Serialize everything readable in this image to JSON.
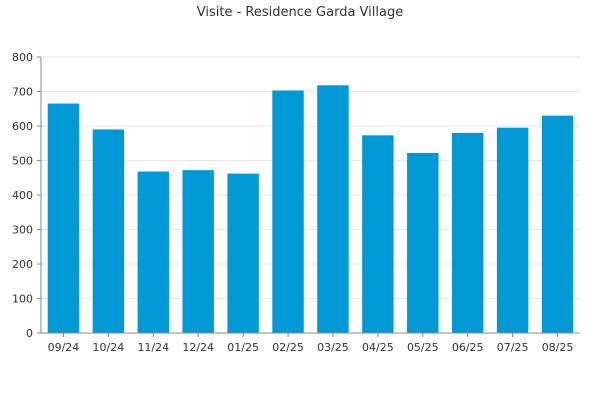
{
  "chart_data": {
    "type": "bar",
    "title": "Visite - Residence Garda Village",
    "xlabel": "",
    "ylabel": "",
    "categories": [
      "09/24",
      "10/24",
      "11/24",
      "12/24",
      "01/25",
      "02/25",
      "03/25",
      "04/25",
      "05/25",
      "06/25",
      "07/25",
      "08/25"
    ],
    "values": [
      665,
      590,
      468,
      472,
      462,
      703,
      718,
      573,
      522,
      580,
      595,
      630
    ],
    "ylim": [
      0,
      800
    ],
    "yticks": [
      0,
      100,
      200,
      300,
      400,
      500,
      600,
      700,
      800
    ],
    "grid": true,
    "legend": "none",
    "bar_color": "#0099d6"
  }
}
